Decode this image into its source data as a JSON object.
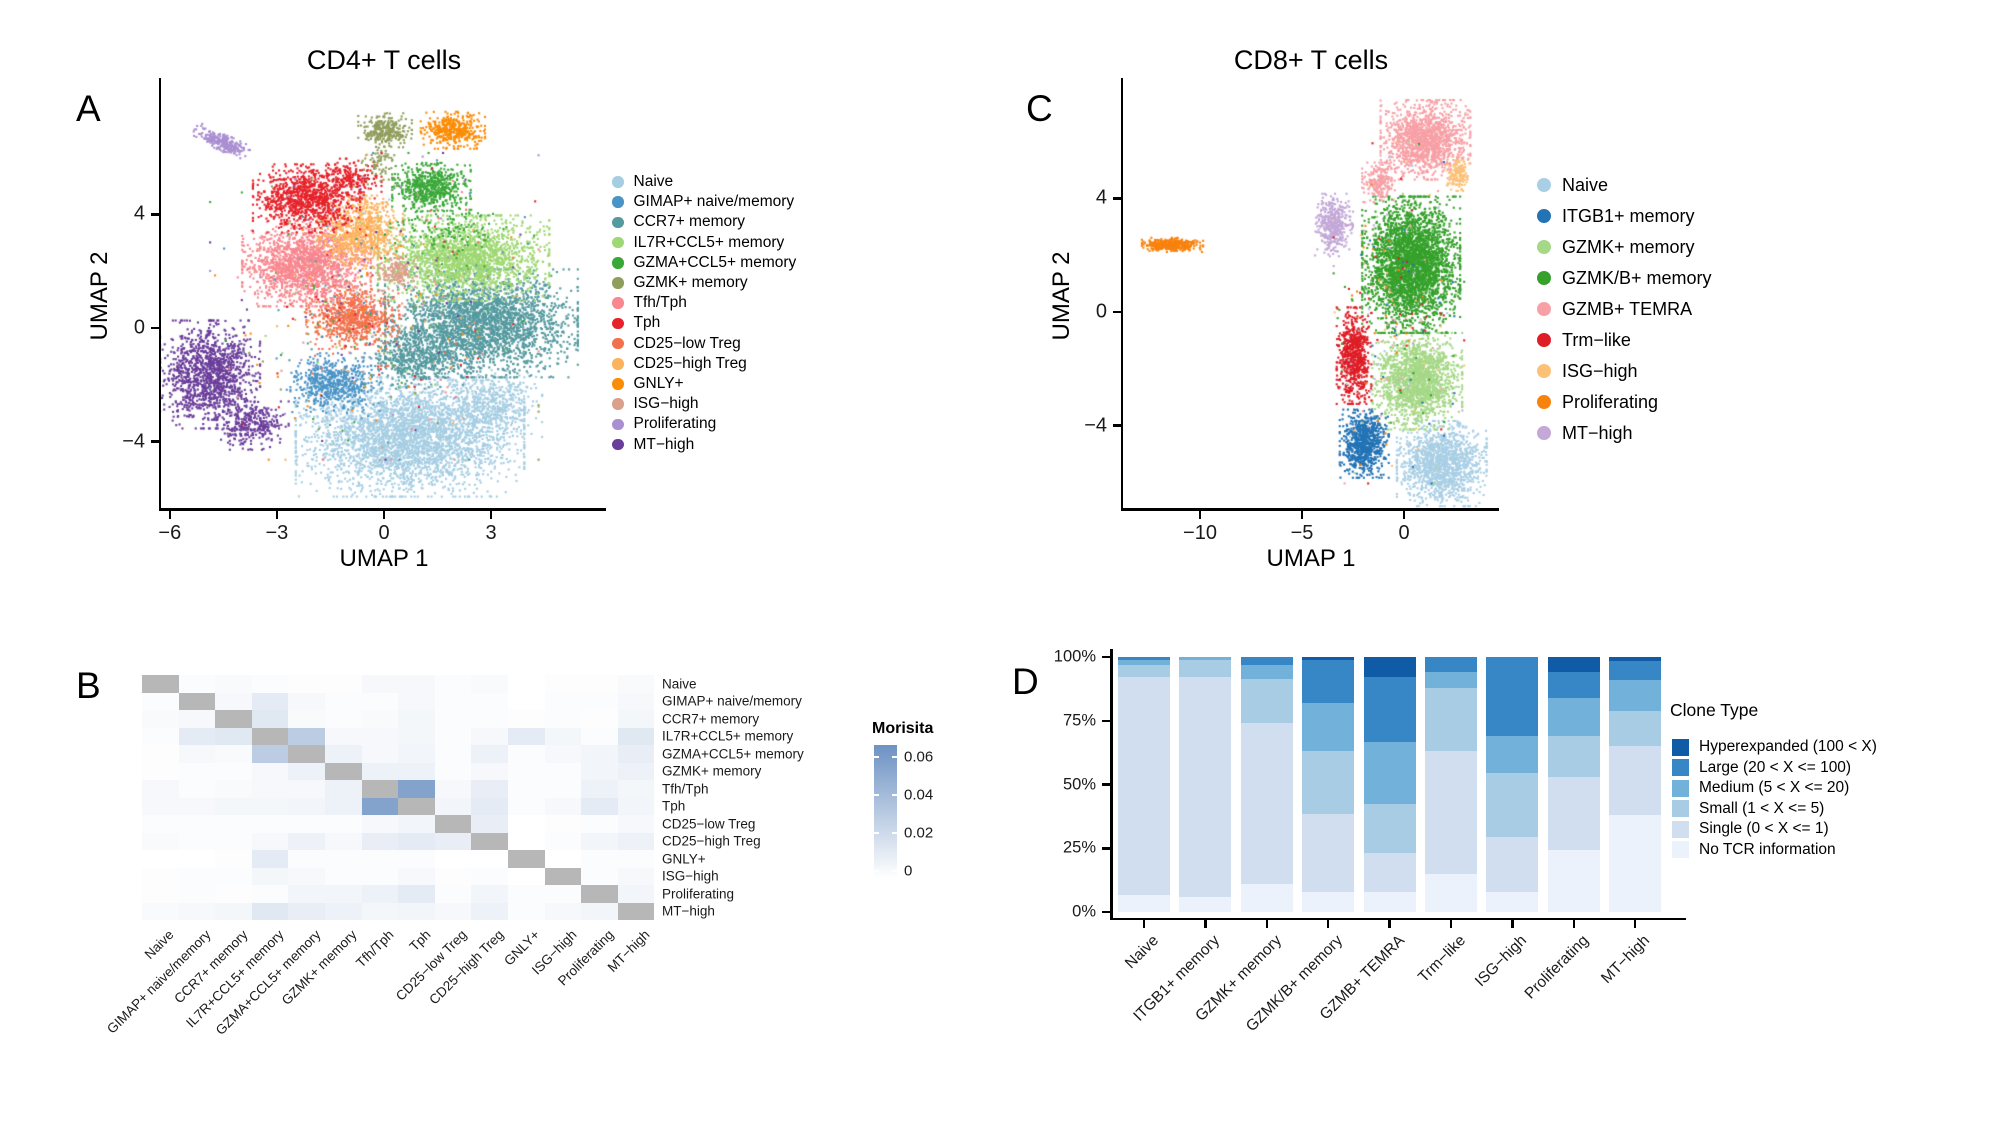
{
  "chart_data": [
    {
      "id": "A",
      "panel_label": "A",
      "type": "scatter",
      "title": "CD4+ T cells",
      "xlabel": "UMAP 1",
      "ylabel": "UMAP 2",
      "xlim": [
        -6.2,
        6.1
      ],
      "ylim": [
        -6.3,
        8.6
      ],
      "grid": false,
      "legend_position": "right",
      "xticks": [
        {
          "v": -6,
          "label": "−6"
        },
        {
          "v": -3,
          "label": "−3"
        },
        {
          "v": 0,
          "label": "0"
        },
        {
          "v": 3,
          "label": "3"
        }
      ],
      "yticks": [
        {
          "v": 4,
          "label": "4"
        },
        {
          "v": 0,
          "label": "0"
        },
        {
          "v": -4,
          "label": "−4"
        }
      ],
      "legend": [
        {
          "label": "Naive",
          "color": "#a6cee3"
        },
        {
          "label": "GIMAP+ naive/memory",
          "color": "#4b94c6"
        },
        {
          "label": "CCR7+ memory",
          "color": "#549a9f"
        },
        {
          "label": "IL7R+CCL5+ memory",
          "color": "#9ed872"
        },
        {
          "label": "GZMA+CCL5+ memory",
          "color": "#3aa838"
        },
        {
          "label": "GZMK+ memory",
          "color": "#8f9e5c"
        },
        {
          "label": "Tfh/Tph",
          "color": "#f8878f"
        },
        {
          "label": "Tph",
          "color": "#e6232b"
        },
        {
          "label": "CD25−low Treg",
          "color": "#f2704c"
        },
        {
          "label": "CD25−high Treg",
          "color": "#fcb35f"
        },
        {
          "label": "GNLY+",
          "color": "#fb8c07"
        },
        {
          "label": "ISG−high",
          "color": "#d9a18b"
        },
        {
          "label": "Proliferating",
          "color": "#aa8fd1"
        },
        {
          "label": "MT−high",
          "color": "#6a3d9a"
        }
      ],
      "clusters": [
        {
          "name": "Naive",
          "color": "#a6cee3",
          "center": [
            0.7,
            -3.8
          ],
          "radius": [
            3.2,
            2.1
          ],
          "n": 3400
        },
        {
          "name": "Naive",
          "color": "#a6cee3",
          "center": [
            3.0,
            -2.6
          ],
          "radius": [
            1.4,
            1.2
          ],
          "n": 450
        },
        {
          "name": "CCR7+ memory",
          "color": "#549a9f",
          "center": [
            2.7,
            0.2
          ],
          "radius": [
            2.7,
            1.9
          ],
          "n": 2700
        },
        {
          "name": "CCR7+ memory",
          "color": "#549a9f",
          "center": [
            0.9,
            -1.0
          ],
          "radius": [
            1.5,
            1.1
          ],
          "n": 550
        },
        {
          "name": "IL7R+CCL5+ memory",
          "color": "#9ed872",
          "center": [
            2.2,
            2.5
          ],
          "radius": [
            2.4,
            1.5
          ],
          "n": 2000
        },
        {
          "name": "GIMAP+ naive/memory",
          "color": "#4b94c6",
          "center": [
            -1.4,
            -1.9
          ],
          "radius": [
            1.25,
            1.05
          ],
          "n": 600
        },
        {
          "name": "MT−high",
          "color": "#6a3d9a",
          "center": [
            -4.9,
            -1.6
          ],
          "radius": [
            1.4,
            1.9
          ],
          "n": 1300
        },
        {
          "name": "MT−high",
          "color": "#6a3d9a",
          "center": [
            -3.7,
            -3.4
          ],
          "radius": [
            1.0,
            0.85
          ],
          "n": 320
        },
        {
          "name": "CD25−low Treg",
          "color": "#f2704c",
          "center": [
            -0.9,
            0.4
          ],
          "radius": [
            1.3,
            1.1
          ],
          "n": 800
        },
        {
          "name": "Tfh/Tph",
          "color": "#f8878f",
          "center": [
            -2.2,
            2.3
          ],
          "radius": [
            1.8,
            1.5
          ],
          "n": 1700
        },
        {
          "name": "CD25−high Treg",
          "color": "#fcb35f",
          "center": [
            -0.7,
            3.4
          ],
          "radius": [
            1.2,
            1.3
          ],
          "n": 800
        },
        {
          "name": "ISG−high",
          "color": "#d9a18b",
          "center": [
            0.3,
            2.0
          ],
          "radius": [
            0.6,
            0.65
          ],
          "n": 170
        },
        {
          "name": "Tph",
          "color": "#e6232b",
          "center": [
            -2.2,
            4.6
          ],
          "radius": [
            1.5,
            1.2
          ],
          "n": 1000
        },
        {
          "name": "Tph",
          "color": "#e6232b",
          "center": [
            -1.0,
            5.3
          ],
          "radius": [
            0.9,
            0.7
          ],
          "n": 200
        },
        {
          "name": "GZMA+CCL5+ memory",
          "color": "#3aa838",
          "center": [
            1.3,
            5.0
          ],
          "radius": [
            1.1,
            0.85
          ],
          "n": 600
        },
        {
          "name": "GZMA+CCL5+ memory",
          "color": "#3aa838",
          "center": [
            1.7,
            3.6
          ],
          "radius": [
            1.7,
            1.1
          ],
          "n": 140
        },
        {
          "name": "GZMK+ memory",
          "color": "#8f9e5c",
          "center": [
            0.0,
            7.0
          ],
          "radius": [
            0.75,
            0.6
          ],
          "n": 280
        },
        {
          "name": "GZMK+ memory",
          "color": "#8f9e5c",
          "center": [
            -0.1,
            5.8
          ],
          "radius": [
            0.55,
            0.9
          ],
          "n": 80
        },
        {
          "name": "GNLY+",
          "color": "#fb8c07",
          "center": [
            1.9,
            7.0
          ],
          "radius": [
            0.9,
            0.65
          ],
          "n": 420
        },
        {
          "name": "Proliferating",
          "color": "#aa8fd1",
          "center": [
            -4.6,
            6.6
          ],
          "radius": [
            0.85,
            0.28
          ],
          "n": 280,
          "rot": -30
        },
        {
          "name": "mixed-noise",
          "color": "mixed",
          "center": [
            -0.3,
            0.8
          ],
          "radius": [
            4.6,
            5.4
          ],
          "n": 500
        }
      ]
    },
    {
      "id": "B",
      "panel_label": "B",
      "type": "heatmap",
      "legend_title": "Morisita",
      "scale_max": 0.065,
      "colorbar_ticks": [
        {
          "v": 0.06,
          "label": "0.06"
        },
        {
          "v": 0.04,
          "label": "0.04"
        },
        {
          "v": 0.02,
          "label": "0.02"
        },
        {
          "v": 0,
          "label": "0"
        }
      ],
      "high_color": "#6d92c3",
      "low_color": "#ffffff",
      "diag_color": "#b7b7b7",
      "labels": [
        "Naive",
        "GIMAP+ naive/memory",
        "CCR7+ memory",
        "IL7R+CCL5+ memory",
        "GZMA+CCL5+ memory",
        "GZMK+ memory",
        "Tfh/Tph",
        "Tph",
        "CD25−low Treg",
        "CD25−high Treg",
        "GNLY+",
        "ISG−high",
        "Proliferating",
        "MT−high"
      ],
      "matrix": [
        [
          null,
          0.002,
          0.003,
          0.002,
          0.001,
          0.001,
          0.004,
          0.004,
          0.002,
          0.003,
          0,
          0.001,
          0.001,
          0.003
        ],
        [
          0.002,
          null,
          0.004,
          0.012,
          0.004,
          0.002,
          0.002,
          0.004,
          0.002,
          0.002,
          0,
          0.002,
          0.002,
          0.004
        ],
        [
          0.003,
          0.004,
          null,
          0.014,
          0.003,
          0.002,
          0.003,
          0.005,
          0.002,
          0.002,
          0.001,
          0.002,
          0.001,
          0.005
        ],
        [
          0.002,
          0.012,
          0.014,
          null,
          0.03,
          0.004,
          0.004,
          0.005,
          0.002,
          0.004,
          0.012,
          0.005,
          0.002,
          0.014
        ],
        [
          0.001,
          0.004,
          0.003,
          0.03,
          null,
          0.008,
          0.004,
          0.006,
          0.002,
          0.008,
          0.002,
          0.004,
          0.006,
          0.01
        ],
        [
          0.001,
          0.002,
          0.002,
          0.004,
          0.008,
          null,
          0.008,
          0.008,
          0.002,
          0.004,
          0.002,
          0.002,
          0.006,
          0.008
        ],
        [
          0.004,
          0.002,
          0.003,
          0.004,
          0.004,
          0.008,
          null,
          0.055,
          0.004,
          0.01,
          0.002,
          0.002,
          0.008,
          0.005
        ],
        [
          0.004,
          0.004,
          0.005,
          0.005,
          0.006,
          0.008,
          0.055,
          null,
          0.006,
          0.012,
          0.002,
          0.004,
          0.012,
          0.006
        ],
        [
          0.002,
          0.002,
          0.002,
          0.002,
          0.002,
          0.002,
          0.004,
          0.006,
          null,
          0.01,
          0,
          0.001,
          0.002,
          0.004
        ],
        [
          0.003,
          0.002,
          0.002,
          0.004,
          0.008,
          0.004,
          0.01,
          0.012,
          0.01,
          null,
          0,
          0.002,
          0.006,
          0.008
        ],
        [
          0,
          0,
          0.001,
          0.012,
          0.002,
          0.002,
          0.002,
          0.002,
          0,
          0,
          null,
          0,
          0.002,
          0.002
        ],
        [
          0.001,
          0.002,
          0.002,
          0.005,
          0.004,
          0.002,
          0.002,
          0.004,
          0.001,
          0.002,
          0,
          null,
          0.002,
          0.004
        ],
        [
          0.001,
          0.002,
          0.001,
          0.002,
          0.006,
          0.006,
          0.008,
          0.012,
          0.002,
          0.006,
          0.002,
          0.002,
          null,
          0.006
        ],
        [
          0.003,
          0.004,
          0.005,
          0.014,
          0.01,
          0.008,
          0.005,
          0.006,
          0.004,
          0.008,
          0.002,
          0.004,
          0.006,
          null
        ]
      ]
    },
    {
      "id": "C",
      "panel_label": "C",
      "type": "scatter",
      "title": "CD8+ T cells",
      "xlabel": "UMAP 1",
      "ylabel": "UMAP 2",
      "xlim": [
        -13.7,
        4.6
      ],
      "ylim": [
        -6.9,
        8.0
      ],
      "grid": false,
      "legend_position": "right",
      "xticks": [
        {
          "v": -10,
          "label": "−10"
        },
        {
          "v": -5,
          "label": "−5"
        },
        {
          "v": 0,
          "label": "0"
        }
      ],
      "yticks": [
        {
          "v": 4,
          "label": "4"
        },
        {
          "v": 0,
          "label": "0"
        },
        {
          "v": -4,
          "label": "−4"
        }
      ],
      "legend": [
        {
          "label": "Naive",
          "color": "#a9cfe5"
        },
        {
          "label": "ITGB1+ memory",
          "color": "#2373b5"
        },
        {
          "label": "GZMK+ memory",
          "color": "#a5d887"
        },
        {
          "label": "GZMK/B+ memory",
          "color": "#35a12b"
        },
        {
          "label": "GZMB+ TEMRA",
          "color": "#f7a0a6"
        },
        {
          "label": "Trm−like",
          "color": "#de1d26"
        },
        {
          "label": "ISG−high",
          "color": "#fbc277"
        },
        {
          "label": "Proliferating",
          "color": "#f8820e"
        },
        {
          "label": "MT−high",
          "color": "#c3a8d8"
        }
      ],
      "clusters": [
        {
          "name": "Naive",
          "color": "#a9cfe5",
          "center": [
            1.8,
            -5.3
          ],
          "radius": [
            2.2,
            1.5
          ],
          "n": 1400
        },
        {
          "name": "GZMK+ memory",
          "color": "#a5d887",
          "center": [
            0.6,
            -2.4
          ],
          "radius": [
            2.2,
            1.7
          ],
          "n": 1700
        },
        {
          "name": "ITGB1+ memory",
          "color": "#2373b5",
          "center": [
            -2.0,
            -4.6
          ],
          "radius": [
            1.2,
            1.2
          ],
          "n": 800
        },
        {
          "name": "GZMK/B+ memory",
          "color": "#35a12b",
          "center": [
            0.3,
            1.7
          ],
          "radius": [
            2.4,
            2.4
          ],
          "n": 3200
        },
        {
          "name": "GZMB+ TEMRA",
          "color": "#f7a0a6",
          "center": [
            1.0,
            6.1
          ],
          "radius": [
            2.2,
            1.4
          ],
          "n": 1400
        },
        {
          "name": "GZMB+ TEMRA",
          "color": "#f7a0a6",
          "center": [
            -1.3,
            4.6
          ],
          "radius": [
            0.8,
            0.7
          ],
          "n": 220
        },
        {
          "name": "Trm−like",
          "color": "#de1d26",
          "center": [
            -2.5,
            -1.5
          ],
          "radius": [
            0.85,
            1.7
          ],
          "n": 700
        },
        {
          "name": "MT−high",
          "color": "#c3a8d8",
          "center": [
            -3.5,
            3.1
          ],
          "radius": [
            0.95,
            1.1
          ],
          "n": 420
        },
        {
          "name": "ISG−high",
          "color": "#fbc277",
          "center": [
            2.6,
            4.9
          ],
          "radius": [
            0.55,
            0.6
          ],
          "n": 150
        },
        {
          "name": "Proliferating",
          "color": "#f8820e",
          "center": [
            -11.4,
            2.4
          ],
          "radius": [
            1.5,
            0.25
          ],
          "n": 380
        },
        {
          "name": "mixed-noise",
          "color": "mixed",
          "center": [
            -0.3,
            0.0
          ],
          "radius": [
            3.2,
            6.0
          ],
          "n": 220
        }
      ]
    },
    {
      "id": "D",
      "panel_label": "D",
      "type": "bar",
      "stacked": true,
      "percent": true,
      "legend_title": "Clone Type",
      "yticks": [
        {
          "v": 100,
          "label": "100%"
        },
        {
          "v": 75,
          "label": "75%"
        },
        {
          "v": 50,
          "label": "50%"
        },
        {
          "v": 25,
          "label": "25%"
        },
        {
          "v": 0,
          "label": "0%"
        }
      ],
      "categories": [
        "Naive",
        "ITGB1+ memory",
        "GZMK+ memory",
        "GZMK/B+ memory",
        "GZMB+ TEMRA",
        "Trm−like",
        "ISG−high",
        "Proliferating",
        "MT−high"
      ],
      "series_bottom_to_top": [
        {
          "name": "No TCR information",
          "color": "#ecf2fb",
          "values": [
            6.5,
            6,
            11,
            8,
            8,
            15,
            8,
            24.5,
            38
          ]
        },
        {
          "name": "Single (0 < X <= 1)",
          "color": "#d0def0",
          "values": [
            85.5,
            86,
            63,
            30.5,
            15,
            48,
            21.5,
            28.5,
            27
          ]
        },
        {
          "name": "Small (1 < X <= 5)",
          "color": "#a9cce5",
          "values": [
            5,
            7,
            17.5,
            24.5,
            19.5,
            25,
            25,
            16,
            14
          ]
        },
        {
          "name": "Medium (5 < X <= 20)",
          "color": "#72b1da",
          "values": [
            2,
            1,
            5.5,
            19,
            24,
            6,
            14.5,
            15,
            12
          ]
        },
        {
          "name": "Large (20 < X <= 100)",
          "color": "#3787c6",
          "values": [
            1,
            0,
            3,
            17,
            25.5,
            6,
            31,
            10,
            7.4
          ]
        },
        {
          "name": "Hyperexpanded (100 < X)",
          "color": "#0f5ba6",
          "values": [
            0,
            0,
            0,
            1,
            8,
            0,
            0,
            6,
            1.6
          ]
        }
      ],
      "legend_top_to_bottom": [
        "Hyperexpanded (100 < X)",
        "Large (20 < X <= 100)",
        "Medium (5 < X <= 20)",
        "Small (1 < X <= 5)",
        "Single (0 < X <= 1)",
        "No TCR information"
      ]
    }
  ]
}
